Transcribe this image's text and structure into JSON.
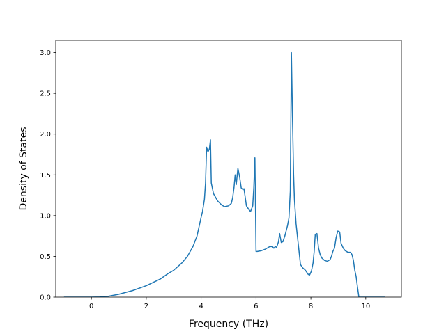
{
  "chart_data": {
    "type": "line",
    "title": "",
    "xlabel": "Frequency (THz)",
    "ylabel": "Density of States",
    "xlim": [
      -1.3,
      11.3
    ],
    "ylim": [
      0.0,
      3.15
    ],
    "xticks": [
      0,
      2,
      4,
      6,
      8,
      10
    ],
    "yticks": [
      0.0,
      0.5,
      1.0,
      1.5,
      2.0,
      2.5,
      3.0
    ],
    "grid": false,
    "legend": "none",
    "series": [
      {
        "color": "#1f77b4",
        "points": [
          [
            -1.0,
            0.0
          ],
          [
            -0.5,
            0.0
          ],
          [
            0.0,
            0.0
          ],
          [
            0.3,
            0.002
          ],
          [
            0.6,
            0.01
          ],
          [
            1.0,
            0.035
          ],
          [
            1.5,
            0.08
          ],
          [
            2.0,
            0.14
          ],
          [
            2.5,
            0.22
          ],
          [
            2.8,
            0.29
          ],
          [
            3.0,
            0.33
          ],
          [
            3.3,
            0.42
          ],
          [
            3.5,
            0.5
          ],
          [
            3.7,
            0.62
          ],
          [
            3.85,
            0.75
          ],
          [
            4.0,
            0.98
          ],
          [
            4.05,
            1.05
          ],
          [
            4.12,
            1.2
          ],
          [
            4.16,
            1.4
          ],
          [
            4.2,
            1.84
          ],
          [
            4.25,
            1.78
          ],
          [
            4.3,
            1.82
          ],
          [
            4.34,
            1.93
          ],
          [
            4.37,
            1.4
          ],
          [
            4.45,
            1.27
          ],
          [
            4.6,
            1.18
          ],
          [
            4.75,
            1.13
          ],
          [
            4.85,
            1.11
          ],
          [
            5.0,
            1.12
          ],
          [
            5.1,
            1.15
          ],
          [
            5.15,
            1.22
          ],
          [
            5.2,
            1.35
          ],
          [
            5.24,
            1.5
          ],
          [
            5.28,
            1.38
          ],
          [
            5.34,
            1.58
          ],
          [
            5.4,
            1.48
          ],
          [
            5.46,
            1.34
          ],
          [
            5.52,
            1.32
          ],
          [
            5.56,
            1.33
          ],
          [
            5.6,
            1.24
          ],
          [
            5.65,
            1.12
          ],
          [
            5.75,
            1.07
          ],
          [
            5.8,
            1.05
          ],
          [
            5.88,
            1.12
          ],
          [
            5.92,
            1.35
          ],
          [
            5.96,
            1.71
          ],
          [
            6.0,
            0.56
          ],
          [
            6.05,
            0.56
          ],
          [
            6.2,
            0.57
          ],
          [
            6.35,
            0.59
          ],
          [
            6.5,
            0.62
          ],
          [
            6.6,
            0.62
          ],
          [
            6.65,
            0.6
          ],
          [
            6.7,
            0.62
          ],
          [
            6.75,
            0.61
          ],
          [
            6.82,
            0.68
          ],
          [
            6.86,
            0.78
          ],
          [
            6.92,
            0.67
          ],
          [
            6.98,
            0.68
          ],
          [
            7.05,
            0.75
          ],
          [
            7.15,
            0.88
          ],
          [
            7.2,
            0.97
          ],
          [
            7.25,
            1.3
          ],
          [
            7.29,
            3.0
          ],
          [
            7.33,
            2.2
          ],
          [
            7.37,
            1.5
          ],
          [
            7.4,
            1.2
          ],
          [
            7.46,
            0.9
          ],
          [
            7.54,
            0.65
          ],
          [
            7.62,
            0.4
          ],
          [
            7.7,
            0.36
          ],
          [
            7.8,
            0.33
          ],
          [
            7.9,
            0.28
          ],
          [
            7.95,
            0.27
          ],
          [
            8.02,
            0.32
          ],
          [
            8.08,
            0.42
          ],
          [
            8.12,
            0.56
          ],
          [
            8.16,
            0.77
          ],
          [
            8.22,
            0.78
          ],
          [
            8.28,
            0.6
          ],
          [
            8.34,
            0.52
          ],
          [
            8.4,
            0.48
          ],
          [
            8.5,
            0.45
          ],
          [
            8.6,
            0.44
          ],
          [
            8.7,
            0.46
          ],
          [
            8.75,
            0.5
          ],
          [
            8.8,
            0.56
          ],
          [
            8.86,
            0.6
          ],
          [
            8.92,
            0.73
          ],
          [
            8.98,
            0.81
          ],
          [
            9.05,
            0.8
          ],
          [
            9.1,
            0.66
          ],
          [
            9.18,
            0.6
          ],
          [
            9.25,
            0.57
          ],
          [
            9.35,
            0.55
          ],
          [
            9.45,
            0.55
          ],
          [
            9.5,
            0.52
          ],
          [
            9.55,
            0.45
          ],
          [
            9.6,
            0.33
          ],
          [
            9.65,
            0.25
          ],
          [
            9.7,
            0.12
          ],
          [
            9.75,
            0.0
          ],
          [
            10.0,
            0.0
          ],
          [
            10.3,
            0.0
          ],
          [
            10.7,
            0.0
          ]
        ]
      }
    ]
  }
}
